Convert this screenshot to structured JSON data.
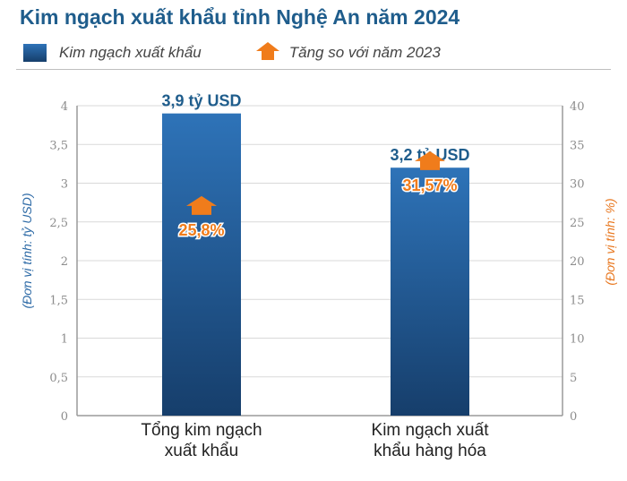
{
  "title": "Kim ngạch xuất khẩu tỉnh Nghệ An năm 2024",
  "legend": {
    "bar_label": "Kim ngạch xuất khẩu",
    "growth_label": "Tăng so với năm 2023"
  },
  "colors": {
    "bar_top": "#2e73b8",
    "bar_bottom": "#163e6b",
    "accent": "#f07c1b",
    "title": "#1f5d8c"
  },
  "chart_data": {
    "type": "bar",
    "categories": [
      "Tổng kim ngạch xuất khẩu",
      "Kim ngạch xuất khẩu hàng hóa"
    ],
    "category_lines": [
      [
        "Tổng kim ngạch",
        "xuất khẩu"
      ],
      [
        "Kim ngạch xuất",
        "khẩu hàng hóa"
      ]
    ],
    "series": [
      {
        "name": "Kim ngạch xuất khẩu",
        "values": [
          3.9,
          3.2
        ],
        "labels": [
          "3,9 tỷ USD",
          "3,2 tỷ USD"
        ],
        "axis": "left"
      },
      {
        "name": "Tăng so với năm 2023",
        "values": [
          25.8,
          31.57
        ],
        "labels": [
          "25,8%",
          "31,57%"
        ],
        "axis": "right"
      }
    ],
    "ylabel_left": "(Đơn vị tính: tỷ USD)",
    "ylabel_right": "(Đơn vị tính: %)",
    "ylim_left": [
      0,
      4
    ],
    "ylim_right": [
      0,
      40
    ],
    "left_ticks": [
      "0",
      "0,5",
      "1",
      "1,5",
      "2",
      "2,5",
      "3",
      "3,5",
      "4"
    ],
    "right_ticks": [
      "0",
      "5",
      "10",
      "15",
      "20",
      "25",
      "30",
      "35",
      "40"
    ],
    "grid": true
  }
}
